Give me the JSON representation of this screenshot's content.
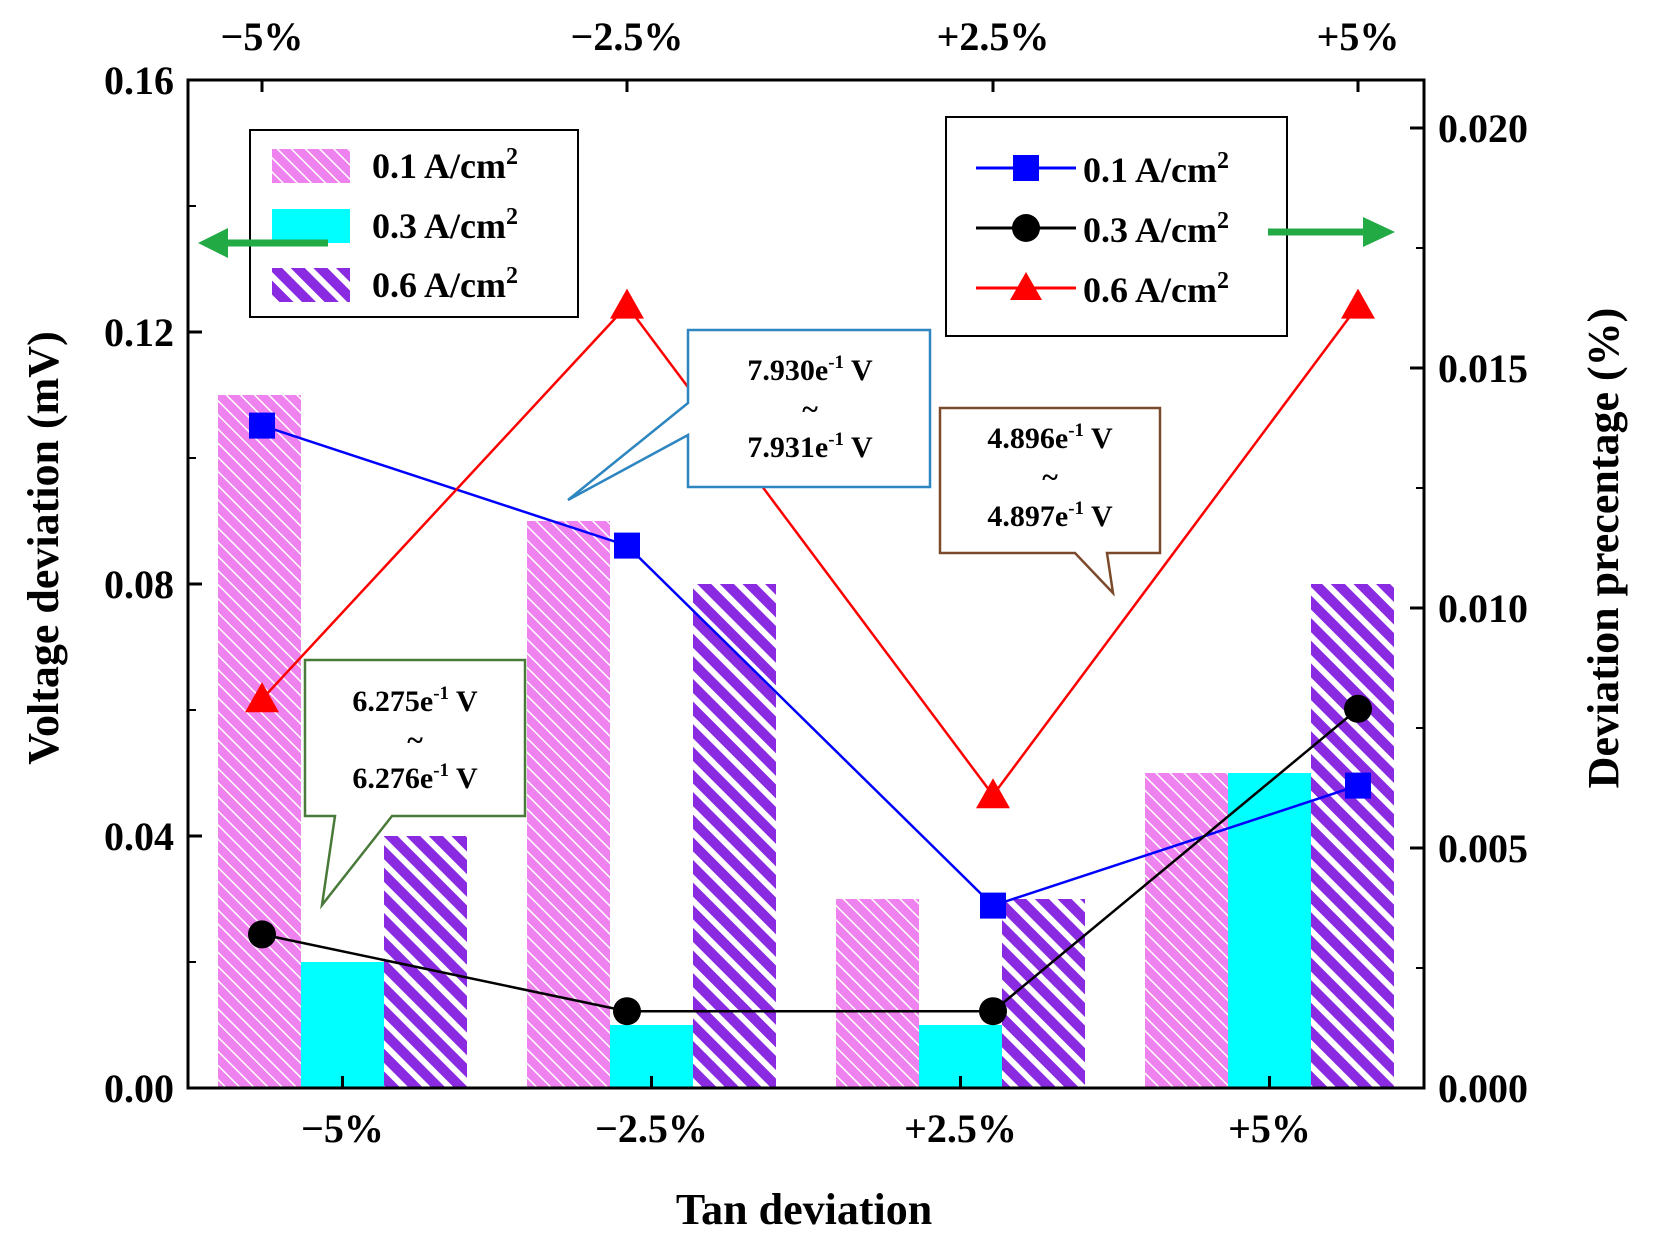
{
  "chart_data": {
    "type": "bar",
    "xlabel": "Tan deviation",
    "categories": [
      "−5%",
      "−2.5%",
      "+2.5%",
      "+5%"
    ],
    "top_categories": [
      "−5%",
      "−2.5%",
      "+2.5%",
      "+5%"
    ],
    "y_left": {
      "label": "Voltage deviation (mV)",
      "ylim": [
        0,
        0.16
      ],
      "ticks": [
        "0.00",
        "0.04",
        "0.08",
        "0.12",
        "0.16"
      ],
      "tick_values": [
        0,
        0.04,
        0.08,
        0.12,
        0.16
      ]
    },
    "y_right": {
      "label": "Deviation precentage (%)",
      "ylim": [
        0,
        0.021
      ],
      "ticks": [
        "0.000",
        "0.005",
        "0.010",
        "0.015",
        "0.020"
      ],
      "tick_values": [
        0,
        0.005,
        0.01,
        0.015,
        0.02
      ]
    },
    "bar_series": [
      {
        "name": "0.1 A/cm",
        "sup": "2",
        "color": "#ee82ee",
        "pattern": "thin-hatch",
        "values": [
          0.11,
          0.09,
          0.03,
          0.05
        ]
      },
      {
        "name": "0.3 A/cm",
        "sup": "2",
        "color": "#00ffff",
        "pattern": "solid",
        "values": [
          0.02,
          0.01,
          0.01,
          0.05
        ]
      },
      {
        "name": "0.6 A/cm",
        "sup": "2",
        "color": "#8a2be2",
        "pattern": "thick-hatch",
        "values": [
          0.04,
          0.08,
          0.03,
          0.08
        ]
      }
    ],
    "line_series": [
      {
        "name": "0.1 A/cm",
        "sup": "2",
        "color": "#0000ff",
        "marker": "square",
        "values": [
          0.0138,
          0.0113,
          0.0038,
          0.0063
        ]
      },
      {
        "name": "0.3 A/cm",
        "sup": "2",
        "color": "#000000",
        "marker": "circle",
        "values": [
          0.0032,
          0.0016,
          0.0016,
          0.0079
        ]
      },
      {
        "name": "0.6 A/cm",
        "sup": "2",
        "color": "#ff0000",
        "marker": "triangle",
        "values": [
          0.0081,
          0.0163,
          0.0061,
          0.0163
        ]
      }
    ],
    "annotations": [
      {
        "name": "callout-minus5",
        "border": "#4a7a3a",
        "line1": "6.275e",
        "line2": "~",
        "line3": "6.276e",
        "sup": "-1",
        "unit": " V"
      },
      {
        "name": "callout-minus2p5",
        "border": "#2e86c1",
        "line1": "7.930e",
        "line2": "~",
        "line3": "7.931e",
        "sup": "-1",
        "unit": " V"
      },
      {
        "name": "callout-plus2p5",
        "border": "#7b4a2a",
        "line1": "4.896e",
        "line2": "~",
        "line3": "4.897e",
        "sup": "-1",
        "unit": " V"
      }
    ],
    "arrow_color": "#22aa44"
  }
}
